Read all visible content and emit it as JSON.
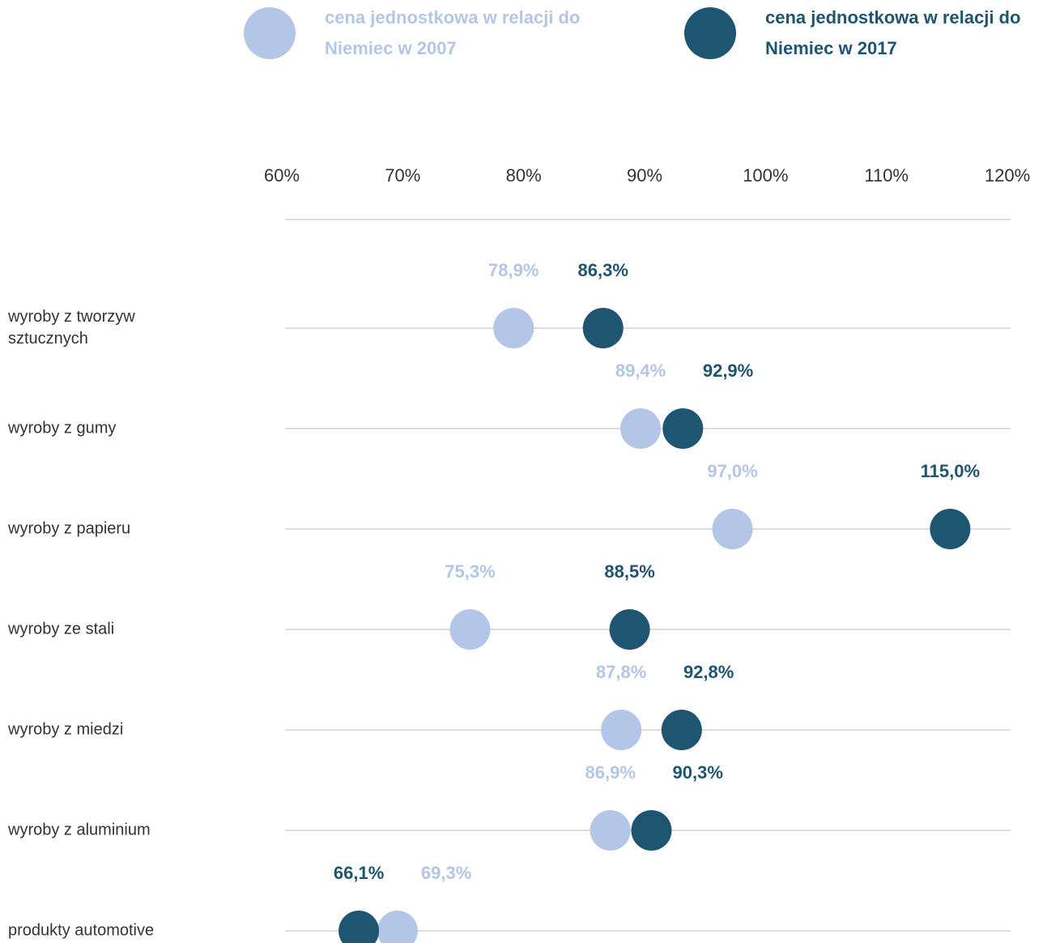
{
  "chart_data": {
    "type": "dot",
    "categories": [
      "wyroby z tworzyw sztucznych",
      "wyroby z gumy",
      "wyroby z papieru",
      "wyroby ze stali",
      "wyroby z miedzi",
      "wyroby z aluminium",
      "produkty automotive"
    ],
    "series": [
      {
        "name": "cena jednostkowa w relacji do Niemiec w 2007",
        "color": "#b4c6e7",
        "values": [
          78.9,
          89.4,
          97.0,
          75.3,
          87.8,
          86.9,
          69.3
        ],
        "value_labels": [
          "78,9%",
          "89,4%",
          "97,0%",
          "75,3%",
          "87,8%",
          "86,9%",
          "69,3%"
        ]
      },
      {
        "name": "cena jednostkowa w relacji do Niemiec w 2017",
        "color": "#1e5570",
        "values": [
          86.3,
          92.9,
          115.0,
          88.5,
          92.8,
          90.3,
          66.1
        ],
        "value_labels": [
          "86,3%",
          "92,9%",
          "115,0%",
          "88,5%",
          "92,8%",
          "90,3%",
          "66,1%"
        ]
      }
    ],
    "xlim": [
      60,
      120
    ],
    "xticks": [
      {
        "value": 60,
        "label": "60%"
      },
      {
        "value": 70,
        "label": "70%"
      },
      {
        "value": 80,
        "label": "80%"
      },
      {
        "value": 90,
        "label": "90%"
      },
      {
        "value": 100,
        "label": "100%"
      },
      {
        "value": 110,
        "label": "110%"
      },
      {
        "value": 120,
        "label": "120%"
      }
    ],
    "legend": "top"
  }
}
